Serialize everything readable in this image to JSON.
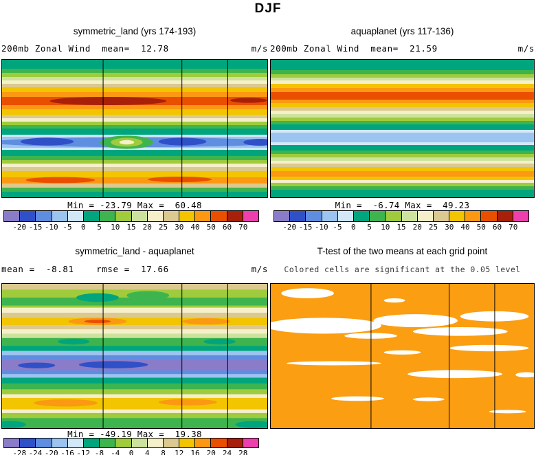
{
  "title": "DJF",
  "palette": [
    "#8a7cc8",
    "#3050c8",
    "#5f8de0",
    "#9cc4f0",
    "#d2e8f8",
    "#00a57e",
    "#3eb44e",
    "#9fcb3c",
    "#cde39d",
    "#f5efca",
    "#dbc98f",
    "#f2c500",
    "#fb9912",
    "#ea4f00",
    "#a82009",
    "#ee3fae"
  ],
  "panels": [
    {
      "title": "symmetric_land (yrs 174-193)",
      "left_label": "200mb Zonal Wind  mean=  12.78",
      "units": "m/s",
      "minmax": "Min = -23.79 Max =  60.48"
    },
    {
      "title": "aquaplanet (yrs 117-136)",
      "left_label": "200mb Zonal Wind  mean=  21.59",
      "units": "m/s",
      "minmax": "Min =  -6.74 Max =  49.23"
    },
    {
      "title": "symmetric_land - aquaplanet",
      "left_label": "mean =  -8.81    rmse =  17.66",
      "units": "m/s",
      "minmax": "Min = -49.19 Max =  19.38"
    },
    {
      "title": "T-test of the two means at each grid point",
      "subtitle": "Colored cells are significant at the 0.05 level"
    }
  ],
  "chart_data": [
    {
      "id": "symmetric_land_wind",
      "type": "contour",
      "title": "symmetric_land (yrs 174-193)",
      "variable": "200mb Zonal Wind",
      "season": "DJF",
      "mean": 12.78,
      "min": -23.79,
      "max": 60.48,
      "units": "m/s",
      "levels": [
        -20,
        -15,
        -10,
        -5,
        0,
        5,
        10,
        15,
        20,
        25,
        30,
        40,
        50,
        60,
        70
      ],
      "bands": [
        [
          0,
          0.065,
          5
        ],
        [
          0.065,
          0.095,
          6
        ],
        [
          0.095,
          0.125,
          7
        ],
        [
          0.125,
          0.15,
          8
        ],
        [
          0.15,
          0.175,
          9
        ],
        [
          0.175,
          0.2,
          10
        ],
        [
          0.2,
          0.235,
          11
        ],
        [
          0.235,
          0.27,
          12
        ],
        [
          0.27,
          0.33,
          13
        ],
        [
          0.33,
          0.36,
          12
        ],
        [
          0.36,
          0.4,
          11
        ],
        [
          0.4,
          0.425,
          10
        ],
        [
          0.425,
          0.45,
          9
        ],
        [
          0.45,
          0.475,
          7
        ],
        [
          0.475,
          0.5,
          6
        ],
        [
          0.5,
          0.545,
          5
        ],
        [
          0.545,
          0.56,
          4
        ],
        [
          0.56,
          0.64,
          3
        ],
        [
          0.64,
          0.655,
          4
        ],
        [
          0.655,
          0.7,
          5
        ],
        [
          0.7,
          0.73,
          6
        ],
        [
          0.73,
          0.755,
          7
        ],
        [
          0.755,
          0.78,
          9
        ],
        [
          0.78,
          0.81,
          10
        ],
        [
          0.81,
          0.855,
          11
        ],
        [
          0.855,
          0.9,
          12
        ],
        [
          0.9,
          0.93,
          10
        ],
        [
          0.93,
          0.96,
          6
        ],
        [
          0.96,
          1,
          5
        ]
      ],
      "blobs": [
        [
          0.4,
          0.3,
          0.22,
          0.03,
          14
        ],
        [
          0.93,
          0.295,
          0.07,
          0.018,
          14
        ],
        [
          0.5,
          0.6,
          0.55,
          0.035,
          2
        ],
        [
          0.17,
          0.595,
          0.1,
          0.028,
          1
        ],
        [
          0.68,
          0.595,
          0.09,
          0.028,
          1
        ],
        [
          0.97,
          0.6,
          0.06,
          0.025,
          1
        ],
        [
          0.47,
          0.6,
          0.1,
          0.048,
          6
        ],
        [
          0.47,
          0.6,
          0.06,
          0.032,
          7
        ],
        [
          0.47,
          0.6,
          0.028,
          0.016,
          9
        ],
        [
          0.22,
          0.875,
          0.13,
          0.022,
          13
        ],
        [
          0.67,
          0.87,
          0.12,
          0.02,
          13
        ]
      ],
      "vlines": [
        0.381,
        0.678,
        0.851
      ]
    },
    {
      "id": "aquaplanet_wind",
      "type": "contour",
      "title": "aquaplanet (yrs 117-136)",
      "variable": "200mb Zonal Wind",
      "season": "DJF",
      "mean": 21.59,
      "min": -6.74,
      "max": 49.23,
      "units": "m/s",
      "levels": [
        -20,
        -15,
        -10,
        -5,
        0,
        5,
        10,
        15,
        20,
        25,
        30,
        40,
        50,
        60,
        70
      ],
      "bands": [
        [
          0,
          0.075,
          5
        ],
        [
          0.075,
          0.105,
          6
        ],
        [
          0.105,
          0.13,
          7
        ],
        [
          0.13,
          0.15,
          8
        ],
        [
          0.15,
          0.175,
          9
        ],
        [
          0.175,
          0.205,
          11
        ],
        [
          0.205,
          0.235,
          12
        ],
        [
          0.235,
          0.29,
          13
        ],
        [
          0.29,
          0.315,
          12
        ],
        [
          0.315,
          0.345,
          11
        ],
        [
          0.345,
          0.37,
          10
        ],
        [
          0.37,
          0.395,
          9
        ],
        [
          0.395,
          0.42,
          8
        ],
        [
          0.42,
          0.445,
          7
        ],
        [
          0.445,
          0.47,
          6
        ],
        [
          0.47,
          0.51,
          5
        ],
        [
          0.51,
          0.53,
          4
        ],
        [
          0.53,
          0.6,
          3
        ],
        [
          0.6,
          0.62,
          4
        ],
        [
          0.62,
          0.66,
          5
        ],
        [
          0.66,
          0.685,
          6
        ],
        [
          0.685,
          0.71,
          7
        ],
        [
          0.71,
          0.735,
          8
        ],
        [
          0.735,
          0.755,
          9
        ],
        [
          0.755,
          0.78,
          10
        ],
        [
          0.78,
          0.81,
          11
        ],
        [
          0.81,
          0.85,
          12
        ],
        [
          0.85,
          0.875,
          11
        ],
        [
          0.875,
          0.895,
          9
        ],
        [
          0.895,
          0.92,
          7
        ],
        [
          0.92,
          0.945,
          6
        ],
        [
          0.945,
          1,
          5
        ]
      ],
      "blobs": [],
      "vlines": []
    },
    {
      "id": "difference",
      "type": "contour",
      "title": "symmetric_land - aquaplanet",
      "season": "DJF",
      "mean": -8.81,
      "rmse": 17.66,
      "min": -49.19,
      "max": 19.38,
      "units": "m/s",
      "levels": [
        -28,
        -24,
        -20,
        -16,
        -12,
        -8,
        -4,
        0,
        4,
        8,
        12,
        16,
        20,
        24,
        28
      ],
      "bands": [
        [
          0,
          0.04,
          10
        ],
        [
          0.04,
          0.095,
          7
        ],
        [
          0.095,
          0.15,
          6
        ],
        [
          0.15,
          0.165,
          7
        ],
        [
          0.165,
          0.2,
          9
        ],
        [
          0.2,
          0.235,
          10
        ],
        [
          0.235,
          0.285,
          11
        ],
        [
          0.285,
          0.315,
          10
        ],
        [
          0.315,
          0.345,
          9
        ],
        [
          0.345,
          0.375,
          8
        ],
        [
          0.375,
          0.43,
          6
        ],
        [
          0.43,
          0.465,
          5
        ],
        [
          0.465,
          0.495,
          3
        ],
        [
          0.495,
          0.525,
          2
        ],
        [
          0.525,
          0.6,
          0
        ],
        [
          0.6,
          0.625,
          2
        ],
        [
          0.625,
          0.65,
          3
        ],
        [
          0.65,
          0.69,
          5
        ],
        [
          0.69,
          0.73,
          6
        ],
        [
          0.73,
          0.765,
          7
        ],
        [
          0.765,
          0.79,
          9
        ],
        [
          0.79,
          0.87,
          11
        ],
        [
          0.87,
          0.895,
          9
        ],
        [
          0.895,
          0.93,
          7
        ],
        [
          0.93,
          1,
          6
        ]
      ],
      "blobs": [
        [
          0.36,
          0.095,
          0.08,
          0.03,
          5
        ],
        [
          0.55,
          0.08,
          0.08,
          0.03,
          6
        ],
        [
          0.36,
          0.26,
          0.11,
          0.025,
          12
        ],
        [
          0.77,
          0.26,
          0.09,
          0.022,
          12
        ],
        [
          0.36,
          0.26,
          0.05,
          0.012,
          13
        ],
        [
          0.27,
          0.4,
          0.06,
          0.02,
          5
        ],
        [
          0.82,
          0.4,
          0.06,
          0.02,
          5
        ],
        [
          0.42,
          0.56,
          0.13,
          0.025,
          1
        ],
        [
          0.13,
          0.565,
          0.07,
          0.02,
          1
        ],
        [
          0.24,
          0.825,
          0.12,
          0.025,
          12
        ],
        [
          0.7,
          0.82,
          0.11,
          0.022,
          12
        ],
        [
          0.03,
          0.975,
          0.06,
          0.025,
          5
        ],
        [
          0.95,
          0.975,
          0.07,
          0.025,
          5
        ]
      ],
      "vlines": [
        0.381,
        0.678,
        0.851
      ]
    },
    {
      "id": "ttest",
      "type": "significance_map",
      "title": "T-test of the two means at each grid point",
      "note": "Colored cells are significant at the 0.05 level",
      "significance_level": 0.05,
      "bg_color": "#fb9e12",
      "white_regions": [
        [
          0.14,
          0.065,
          0.1,
          0.035
        ],
        [
          0.47,
          0.115,
          0.04,
          0.015
        ],
        [
          0.2,
          0.29,
          0.22,
          0.055
        ],
        [
          0.55,
          0.255,
          0.16,
          0.045
        ],
        [
          0.85,
          0.225,
          0.13,
          0.035
        ],
        [
          0.72,
          0.33,
          0.18,
          0.03
        ],
        [
          0.38,
          0.36,
          0.1,
          0.02
        ],
        [
          0.83,
          0.445,
          0.15,
          0.022
        ],
        [
          0.5,
          0.475,
          0.07,
          0.015
        ],
        [
          0.24,
          0.55,
          0.18,
          0.014
        ],
        [
          0.7,
          0.625,
          0.18,
          0.028
        ],
        [
          0.97,
          0.63,
          0.04,
          0.018
        ],
        [
          0.33,
          0.795,
          0.1,
          0.016
        ],
        [
          0.6,
          0.8,
          0.06,
          0.013
        ],
        [
          0.9,
          0.885,
          0.07,
          0.012
        ]
      ],
      "vlines": [
        0.381,
        0.678,
        0.851
      ]
    }
  ]
}
